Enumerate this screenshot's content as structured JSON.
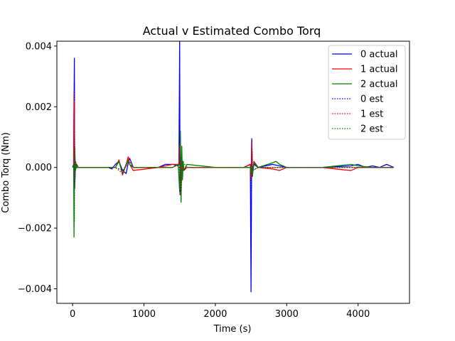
{
  "chart_data": {
    "type": "line",
    "title": "Actual v Estimated Combo Torq",
    "xlabel": "Time (s)",
    "ylabel": "Combo Torq (Nm)",
    "xlim": [
      -220,
      4720
    ],
    "ylim": [
      -0.00448,
      0.00416
    ],
    "xticks": [
      0,
      1000,
      2000,
      3000,
      4000
    ],
    "xtick_labels": [
      "0",
      "1000",
      "2000",
      "3000",
      "4000"
    ],
    "yticks": [
      -0.004,
      -0.002,
      0.0,
      0.002,
      0.004
    ],
    "ytick_labels": [
      "−0.004",
      "−0.002",
      "0.000",
      "0.002",
      "0.004"
    ],
    "grid": false,
    "legend_position": "top-right",
    "series": [
      {
        "name": "0 actual",
        "color": "#0000ff",
        "style": "solid",
        "x": [
          0,
          15,
          25,
          30,
          40,
          60,
          200,
          500,
          550,
          600,
          650,
          700,
          750,
          780,
          800,
          850,
          1200,
          1300,
          1400,
          1480,
          1490,
          1500,
          1505,
          1510,
          1520,
          1540,
          1560,
          1600,
          2000,
          2400,
          2490,
          2500,
          2510,
          2520,
          2540,
          2600,
          2800,
          2900,
          3000,
          3500,
          3900,
          4000,
          4100,
          4200,
          4300,
          4400,
          4500
        ],
        "y": [
          0,
          0.0001,
          0.0036,
          -0.0007,
          0.0002,
          0,
          0,
          0,
          -5e-05,
          0.0001,
          0.0002,
          -0.0001,
          -0.0002,
          0.00015,
          0.0003,
          0,
          0,
          0.0001,
          0.0001,
          5e-05,
          0.0001,
          0.00415,
          -0.0009,
          0.0003,
          -0.0003,
          0.0002,
          -0.0001,
          0,
          0,
          0,
          0.0001,
          -0.0041,
          0.00095,
          -0.0002,
          0.0001,
          0,
          0.0001,
          5e-05,
          0,
          0,
          5e-05,
          0.0001,
          0,
          5e-05,
          0,
          0.0001,
          0
        ]
      },
      {
        "name": "1 actual",
        "color": "#ff0000",
        "style": "solid",
        "x": [
          0,
          15,
          20,
          30,
          40,
          60,
          200,
          600,
          650,
          700,
          750,
          780,
          800,
          850,
          1200,
          1400,
          1490,
          1500,
          1510,
          1520,
          1530,
          1540,
          1560,
          1600,
          2000,
          2400,
          2490,
          2500,
          2510,
          2520,
          2540,
          2600,
          2800,
          2900,
          3000,
          3500,
          3800,
          3900,
          4000,
          4200,
          4500
        ],
        "y": [
          0,
          0.0001,
          0.0025,
          -0.0006,
          0.0002,
          0,
          0,
          0,
          0.00025,
          -0.00025,
          0.0001,
          0.00035,
          0.0001,
          -0.0001,
          0,
          0.0001,
          0.0001,
          0.0008,
          -0.0009,
          0.0003,
          -0.00045,
          0.0002,
          -0.0001,
          0,
          0,
          0,
          0.0001,
          -0.0004,
          0.0009,
          -0.0002,
          0.0002,
          0,
          -5e-05,
          -0.0001,
          0,
          0,
          -8e-05,
          -0.0001,
          0,
          0,
          0
        ]
      },
      {
        "name": "2 actual",
        "color": "#008000",
        "style": "solid",
        "x": [
          0,
          15,
          20,
          30,
          40,
          60,
          80,
          200,
          600,
          650,
          700,
          750,
          780,
          800,
          850,
          1200,
          1400,
          1480,
          1500,
          1510,
          1520,
          1530,
          1540,
          1550,
          1560,
          1580,
          1600,
          2000,
          2400,
          2490,
          2500,
          2510,
          2520,
          2540,
          2600,
          2800,
          2850,
          2900,
          3000,
          3500,
          3900,
          4000,
          4200,
          4500
        ],
        "y": [
          0,
          0.0001,
          -0.0023,
          0.0007,
          -0.0001,
          0.0001,
          0,
          0,
          0,
          0.0002,
          -0.0002,
          0.0001,
          0.00025,
          0.0001,
          0,
          0,
          0,
          0.0001,
          -0.0008,
          0.0012,
          -0.00115,
          0.0007,
          -0.0004,
          0.0002,
          -0.0001,
          0,
          0.0001,
          0,
          0,
          0,
          -0.0002,
          0.0001,
          -0.0003,
          0.00015,
          0,
          0.00015,
          0.0002,
          0.0001,
          0,
          0,
          0.0001,
          5e-05,
          0,
          0
        ]
      },
      {
        "name": "0 est",
        "color": "#0000ff",
        "style": "dotted",
        "x": [
          0,
          20,
          25,
          30,
          40,
          60,
          200,
          600,
          700,
          800,
          850,
          1400,
          1490,
          1500,
          1510,
          1520,
          1540,
          1600,
          2400,
          2490,
          2500,
          2510,
          2520,
          2600,
          3000,
          4000,
          4500
        ],
        "y": [
          0,
          0.0001,
          0.0028,
          -0.0005,
          0.0001,
          0,
          0,
          0,
          -0.0001,
          0.0002,
          0,
          0,
          0.0001,
          0.001,
          -0.0008,
          0.0002,
          -0.0001,
          0,
          0,
          0.0001,
          -0.0008,
          0.0009,
          -0.0001,
          0,
          0,
          0,
          0
        ]
      },
      {
        "name": "1 est",
        "color": "#ff0000",
        "style": "dotted",
        "x": [
          0,
          20,
          25,
          30,
          40,
          60,
          200,
          600,
          700,
          800,
          850,
          1400,
          1490,
          1500,
          1510,
          1520,
          1540,
          1600,
          2400,
          2490,
          2500,
          2510,
          2520,
          2600,
          3000,
          4000,
          4500
        ],
        "y": [
          0,
          0.0001,
          0.0022,
          -0.0004,
          0.0001,
          0,
          0,
          0,
          -0.0002,
          0.0003,
          0,
          0,
          0.0001,
          0.0007,
          -0.0007,
          0.0002,
          -0.0001,
          0,
          0,
          0.0001,
          -0.0003,
          0.0008,
          -0.0001,
          0,
          0,
          0,
          0
        ]
      },
      {
        "name": "2 est",
        "color": "#008000",
        "style": "dotted",
        "x": [
          0,
          20,
          25,
          30,
          40,
          60,
          200,
          600,
          700,
          800,
          850,
          1400,
          1490,
          1500,
          1510,
          1520,
          1540,
          1600,
          2400,
          2490,
          2500,
          2510,
          2520,
          2600,
          3000,
          4000,
          4500
        ],
        "y": [
          0,
          0.0001,
          -0.0018,
          0.0005,
          -0.0001,
          0,
          0,
          0,
          -0.0001,
          0.0002,
          0,
          0,
          0.0001,
          -0.0006,
          0.001,
          -0.0009,
          0.0002,
          0,
          0,
          0,
          -0.0002,
          0.0001,
          -0.0001,
          0,
          0,
          0,
          0
        ]
      }
    ]
  }
}
